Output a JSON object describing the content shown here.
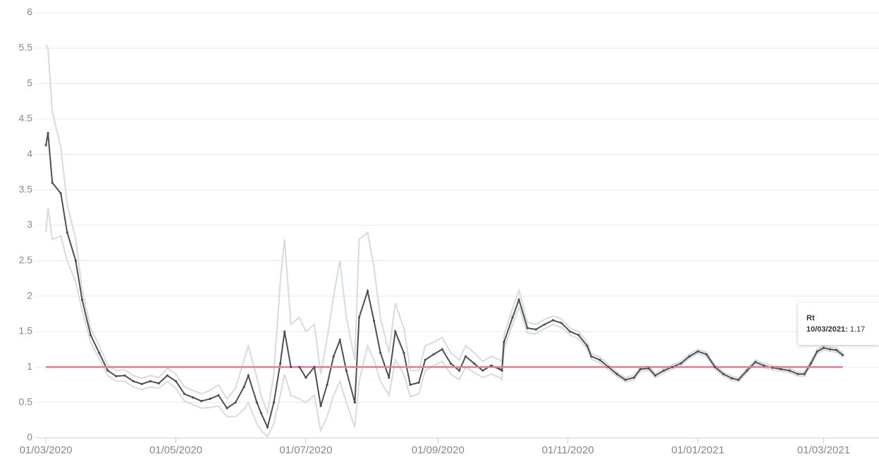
{
  "chart_data": {
    "type": "line",
    "x": [
      "01/03/2020",
      "02/03/2020",
      "04/03/2020",
      "08/03/2020",
      "11/03/2020",
      "15/03/2020",
      "18/03/2020",
      "22/03/2020",
      "26/03/2020",
      "30/03/2020",
      "03/04/2020",
      "07/04/2020",
      "11/04/2020",
      "15/04/2020",
      "19/04/2020",
      "23/04/2020",
      "27/04/2020",
      "01/05/2020",
      "05/05/2020",
      "09/05/2020",
      "13/05/2020",
      "17/05/2020",
      "21/05/2020",
      "25/05/2020",
      "29/05/2020",
      "02/06/2020",
      "04/06/2020",
      "08/06/2020",
      "10/06/2020",
      "13/06/2020",
      "16/06/2020",
      "19/06/2020",
      "21/06/2020",
      "24/06/2020",
      "28/06/2020",
      "01/07/2020",
      "05/07/2020",
      "08/07/2020",
      "11/07/2020",
      "14/07/2020",
      "17/07/2020",
      "20/07/2020",
      "24/07/2020",
      "26/07/2020",
      "30/07/2020",
      "02/08/2020",
      "05/08/2020",
      "09/08/2020",
      "12/08/2020",
      "16/08/2020",
      "19/08/2020",
      "23/08/2020",
      "26/08/2020",
      "30/08/2020",
      "03/09/2020",
      "07/09/2020",
      "11/09/2020",
      "14/09/2020",
      "18/09/2020",
      "22/09/2020",
      "26/09/2020",
      "30/09/2020",
      "01/10/2020",
      "02/10/2020",
      "06/10/2020",
      "09/10/2020",
      "13/10/2020",
      "17/10/2020",
      "21/10/2020",
      "25/10/2020",
      "29/10/2020",
      "02/11/2020",
      "06/11/2020",
      "10/11/2020",
      "12/11/2020",
      "16/11/2020",
      "20/11/2020",
      "24/11/2020",
      "28/11/2020",
      "02/12/2020",
      "05/12/2020",
      "09/12/2020",
      "12/12/2020",
      "16/12/2020",
      "20/12/2020",
      "24/12/2020",
      "28/12/2020",
      "01/01/2021",
      "05/01/2021",
      "09/01/2021",
      "13/01/2021",
      "17/01/2021",
      "20/01/2021",
      "24/01/2021",
      "28/01/2021",
      "01/02/2021",
      "05/02/2021",
      "09/02/2021",
      "13/02/2021",
      "17/02/2021",
      "20/02/2021",
      "23/02/2021",
      "26/02/2021",
      "01/03/2021",
      "04/03/2021",
      "07/03/2021",
      "10/03/2021"
    ],
    "series": [
      {
        "name": "Rt",
        "color": "#4d4f52",
        "values": [
          4.13,
          4.3,
          3.6,
          3.45,
          2.9,
          2.5,
          1.95,
          1.45,
          1.2,
          0.95,
          0.87,
          0.88,
          0.8,
          0.76,
          0.8,
          0.77,
          0.88,
          0.8,
          0.62,
          0.57,
          0.52,
          0.55,
          0.6,
          0.42,
          0.5,
          0.72,
          0.88,
          0.5,
          0.35,
          0.15,
          0.5,
          1.05,
          1.5,
          1.0,
          1.0,
          0.85,
          1.0,
          0.45,
          0.75,
          1.15,
          1.38,
          0.95,
          0.5,
          1.7,
          2.07,
          1.65,
          1.2,
          0.85,
          1.5,
          1.2,
          0.75,
          0.78,
          1.1,
          1.18,
          1.25,
          1.05,
          0.95,
          1.15,
          1.05,
          0.95,
          1.02,
          0.97,
          0.95,
          1.35,
          1.7,
          1.95,
          1.55,
          1.53,
          1.6,
          1.66,
          1.62,
          1.5,
          1.45,
          1.3,
          1.15,
          1.1,
          1.0,
          0.9,
          0.82,
          0.85,
          0.97,
          0.98,
          0.88,
          0.95,
          1.0,
          1.05,
          1.15,
          1.22,
          1.18,
          1.0,
          0.9,
          0.84,
          0.82,
          0.95,
          1.07,
          1.02,
          0.99,
          0.97,
          0.95,
          0.9,
          0.9,
          1.05,
          1.22,
          1.27,
          1.25,
          1.24,
          1.17
        ]
      },
      {
        "color": "#d5dcdc",
        "values": [
          2.9,
          3.25,
          2.8,
          2.85,
          2.5,
          2.2,
          1.8,
          1.35,
          1.12,
          0.88,
          0.8,
          0.8,
          0.72,
          0.68,
          0.72,
          0.7,
          0.8,
          0.7,
          0.52,
          0.47,
          0.42,
          0.43,
          0.45,
          0.3,
          0.3,
          0.4,
          0.5,
          0.2,
          0.1,
          0.02,
          0.2,
          0.6,
          0.9,
          0.6,
          0.55,
          0.5,
          0.6,
          0.1,
          0.3,
          0.6,
          0.8,
          0.5,
          0.15,
          0.8,
          1.3,
          1.1,
          0.8,
          0.6,
          1.1,
          0.9,
          0.58,
          0.62,
          0.95,
          1.02,
          1.08,
          0.9,
          0.82,
          1.0,
          0.92,
          0.85,
          0.9,
          0.85,
          0.82,
          1.25,
          1.6,
          1.85,
          1.48,
          1.47,
          1.54,
          1.6,
          1.56,
          1.45,
          1.4,
          1.26,
          1.11,
          1.06,
          0.96,
          0.87,
          0.79,
          0.82,
          0.94,
          0.95,
          0.85,
          0.92,
          0.97,
          1.02,
          1.12,
          1.19,
          1.15,
          0.97,
          0.87,
          0.81,
          0.79,
          0.92,
          1.04,
          0.99,
          0.96,
          0.94,
          0.92,
          0.87,
          0.87,
          1.02,
          1.19,
          1.24,
          1.22,
          1.21,
          1.14
        ]
      },
      {
        "color": "#d5dcdc",
        "values": [
          5.55,
          5.5,
          4.6,
          4.1,
          3.3,
          2.8,
          2.1,
          1.55,
          1.3,
          1.03,
          0.95,
          0.96,
          0.88,
          0.84,
          0.88,
          0.85,
          0.98,
          0.9,
          0.72,
          0.67,
          0.62,
          0.67,
          0.75,
          0.55,
          0.7,
          1.1,
          1.3,
          0.85,
          0.6,
          0.35,
          0.9,
          2.2,
          2.8,
          1.6,
          1.7,
          1.5,
          1.6,
          0.9,
          1.4,
          2.0,
          2.5,
          1.7,
          1.1,
          2.8,
          2.9,
          2.4,
          1.7,
          1.2,
          1.9,
          1.55,
          0.95,
          0.95,
          1.3,
          1.35,
          1.42,
          1.2,
          1.1,
          1.3,
          1.2,
          1.08,
          1.15,
          1.1,
          1.08,
          1.45,
          1.82,
          2.08,
          1.63,
          1.6,
          1.67,
          1.72,
          1.68,
          1.55,
          1.5,
          1.35,
          1.19,
          1.14,
          1.04,
          0.93,
          0.85,
          0.88,
          1.0,
          1.01,
          0.91,
          0.98,
          1.03,
          1.08,
          1.18,
          1.25,
          1.21,
          1.03,
          0.93,
          0.87,
          0.85,
          0.98,
          1.1,
          1.05,
          1.02,
          1.0,
          0.98,
          0.93,
          0.93,
          1.08,
          1.25,
          1.3,
          1.28,
          1.27,
          1.2
        ]
      }
    ],
    "reference_line": {
      "value": 1,
      "color": "#e0808f"
    },
    "xlim": [
      "25/02/2020",
      "27/03/2021"
    ],
    "xticks": [
      "01/03/2020",
      "01/05/2020",
      "01/07/2020",
      "01/09/2020",
      "01/11/2020",
      "01/01/2021",
      "01/03/2021"
    ],
    "ylim": [
      0,
      6
    ],
    "yticks": [
      0,
      0.5,
      1,
      1.5,
      2,
      2.5,
      3,
      3.5,
      4,
      4.5,
      5,
      5.5,
      6
    ],
    "grid": true
  }
}
